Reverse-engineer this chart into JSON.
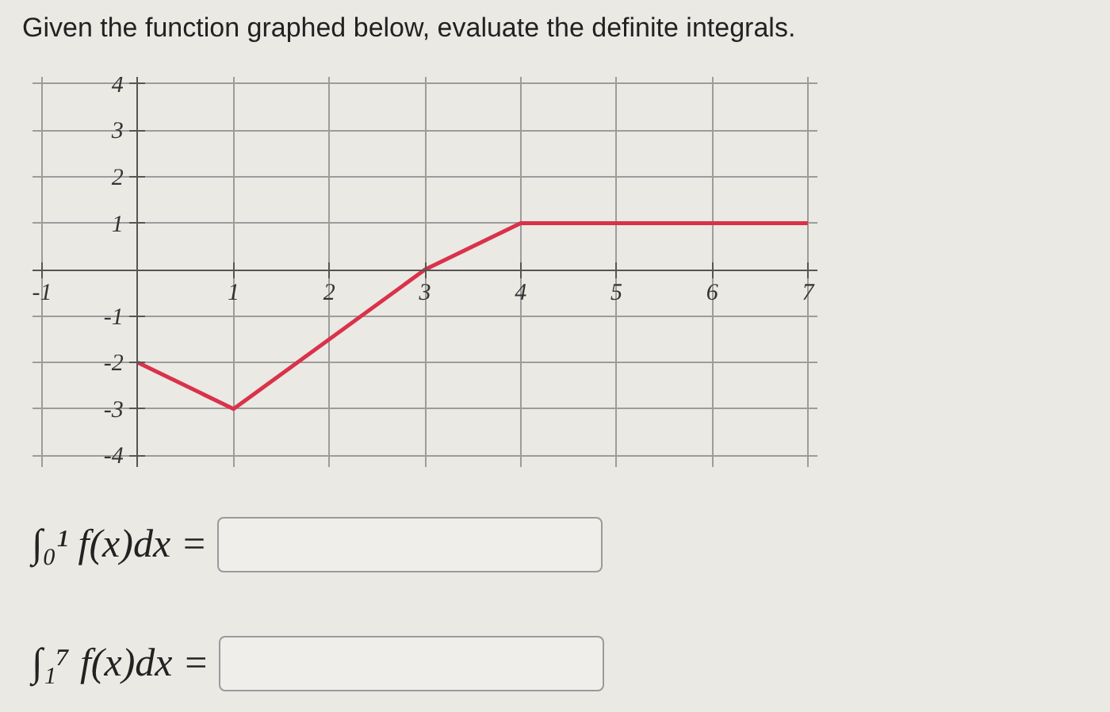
{
  "chart_data": {
    "type": "line",
    "title": "Given the function graphed below, evaluate the definite integrals.",
    "x": [
      0,
      1,
      3,
      4,
      7
    ],
    "series": [
      {
        "color": "#d9324a",
        "values": [
          -2,
          -3,
          0,
          1,
          1
        ]
      }
    ],
    "xlim": [
      -1.1,
      7.1
    ],
    "ylim": [
      -4.25,
      4.15
    ],
    "xticks": [
      -1,
      1,
      2,
      3,
      4,
      5,
      6,
      7
    ],
    "yticks": [
      -4,
      -3,
      -2,
      -1,
      1,
      2,
      3,
      4
    ],
    "grid": true,
    "line_style": "solid",
    "annotations": [
      "∫₀¹ f(x)dx =",
      "∫₁⁷ f(x)dx ="
    ]
  }
}
